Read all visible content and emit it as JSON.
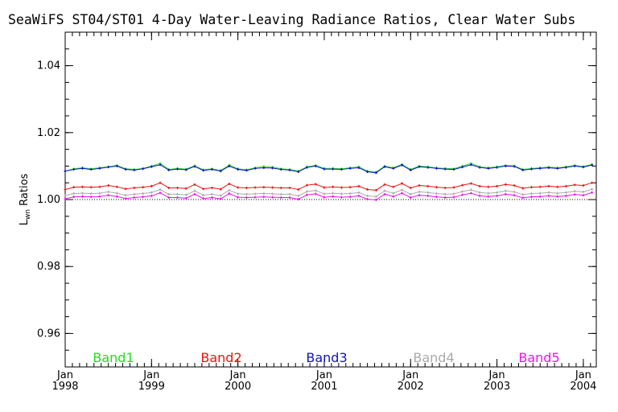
{
  "chart_data": {
    "type": "line",
    "title": "SeaWiFS ST04/ST01 4-Day Water-Leaving Radiance Ratios, Clear Water Subs",
    "ylabel": "Lwn Ratios",
    "ylabel_main": "L",
    "ylabel_sub": "wn",
    "ylabel_rest": " Ratios",
    "xlabel": "",
    "xlim": [
      1998.0,
      2004.15
    ],
    "ylim": [
      0.95,
      1.05
    ],
    "yticks": [
      "0.96",
      "0.98",
      "1.00",
      "1.02",
      "1.04"
    ],
    "ytick_values": [
      0.96,
      0.98,
      1.0,
      1.02,
      1.04
    ],
    "xticks": [
      {
        "month": "Jan",
        "year": "1998",
        "value": 1998
      },
      {
        "month": "Jan",
        "year": "1999",
        "value": 1999
      },
      {
        "month": "Jan",
        "year": "2000",
        "value": 2000
      },
      {
        "month": "Jan",
        "year": "2001",
        "value": 2001
      },
      {
        "month": "Jan",
        "year": "2002",
        "value": 2002
      },
      {
        "month": "Jan",
        "year": "2003",
        "value": 2003
      },
      {
        "month": "Jan",
        "year": "2004",
        "value": 2004
      }
    ],
    "reference_line": 1.0,
    "x": [
      1998.0,
      1998.1,
      1998.2,
      1998.3,
      1998.4,
      1998.5,
      1998.6,
      1998.7,
      1998.8,
      1998.9,
      1999.0,
      1999.1,
      1999.2,
      1999.3,
      1999.4,
      1999.5,
      1999.6,
      1999.7,
      1999.8,
      1999.9,
      2000.0,
      2000.1,
      2000.2,
      2000.3,
      2000.4,
      2000.5,
      2000.6,
      2000.7,
      2000.8,
      2000.9,
      2001.0,
      2001.1,
      2001.2,
      2001.3,
      2001.4,
      2001.5,
      2001.6,
      2001.7,
      2001.8,
      2001.9,
      2002.0,
      2002.1,
      2002.2,
      2002.3,
      2002.4,
      2002.5,
      2002.6,
      2002.7,
      2002.8,
      2002.9,
      2003.0,
      2003.1,
      2003.2,
      2003.3,
      2003.4,
      2003.5,
      2003.6,
      2003.7,
      2003.8,
      2003.9,
      2004.0,
      2004.1
    ],
    "series": [
      {
        "name": "Band1",
        "color": "#22dd22",
        "values": [
          1.0085,
          1.0092,
          1.0095,
          1.0092,
          1.0095,
          1.0098,
          1.0102,
          1.0092,
          1.009,
          1.0093,
          1.01,
          1.0108,
          1.009,
          1.0093,
          1.0091,
          1.0101,
          1.0089,
          1.0092,
          1.0087,
          1.0103,
          1.0092,
          1.0089,
          1.0095,
          1.0099,
          1.0097,
          1.0092,
          1.009,
          1.0085,
          1.0098,
          1.0102,
          1.0093,
          1.0093,
          1.0092,
          1.0095,
          1.0098,
          1.0085,
          1.0082,
          1.01,
          1.0095,
          1.0105,
          1.009,
          1.01,
          1.0098,
          1.0095,
          1.0093,
          1.0092,
          1.01,
          1.0108,
          1.0098,
          1.0095,
          1.0098,
          1.0102,
          1.0101,
          1.009,
          1.0093,
          1.0095,
          1.0097,
          1.0095,
          1.0098,
          1.0102,
          1.0099,
          1.0105
        ]
      },
      {
        "name": "Band2",
        "color": "#ee1111",
        "values": [
          1.003,
          1.0037,
          1.0038,
          1.0037,
          1.0038,
          1.0042,
          1.0038,
          1.0032,
          1.0035,
          1.0037,
          1.004,
          1.005,
          1.0035,
          1.0035,
          1.0033,
          1.0045,
          1.0032,
          1.0035,
          1.0031,
          1.0047,
          1.0036,
          1.0035,
          1.0036,
          1.0037,
          1.0036,
          1.0035,
          1.0035,
          1.003,
          1.0043,
          1.0046,
          1.0036,
          1.0038,
          1.0036,
          1.0037,
          1.004,
          1.003,
          1.0028,
          1.0045,
          1.0038,
          1.0048,
          1.0035,
          1.0042,
          1.004,
          1.0037,
          1.0035,
          1.0036,
          1.0043,
          1.0048,
          1.004,
          1.0038,
          1.004,
          1.0045,
          1.0042,
          1.0034,
          1.0037,
          1.0038,
          1.004,
          1.0038,
          1.004,
          1.0044,
          1.0042,
          1.005
        ]
      },
      {
        "name": "Band3",
        "color": "#1111cc",
        "values": [
          1.0085,
          1.009,
          1.0093,
          1.009,
          1.0093,
          1.0097,
          1.01,
          1.009,
          1.0088,
          1.0092,
          1.0098,
          1.0104,
          1.0088,
          1.0091,
          1.0089,
          1.0099,
          1.0087,
          1.009,
          1.0085,
          1.01,
          1.009,
          1.0087,
          1.0093,
          1.0095,
          1.0094,
          1.009,
          1.0088,
          1.0083,
          1.0096,
          1.01,
          1.0091,
          1.0091,
          1.009,
          1.0093,
          1.0095,
          1.0083,
          1.008,
          1.0098,
          1.0093,
          1.0103,
          1.0088,
          1.0098,
          1.0096,
          1.0093,
          1.0091,
          1.009,
          1.0097,
          1.0104,
          1.0096,
          1.0093,
          1.0096,
          1.01,
          1.0099,
          1.0088,
          1.0091,
          1.0093,
          1.0095,
          1.0093,
          1.0096,
          1.01,
          1.0097,
          1.0103
        ]
      },
      {
        "name": "Band4",
        "color": "#aaaaaa",
        "values": [
          1.0012,
          1.0018,
          1.0019,
          1.0018,
          1.0019,
          1.0023,
          1.0019,
          1.0013,
          1.0016,
          1.0018,
          1.0021,
          1.003,
          1.0016,
          1.0016,
          1.0014,
          1.0026,
          1.0013,
          1.0016,
          1.0012,
          1.0028,
          1.0017,
          1.0016,
          1.0017,
          1.0018,
          1.0017,
          1.0016,
          1.0016,
          1.0011,
          1.0024,
          1.0027,
          1.0017,
          1.0019,
          1.0017,
          1.0018,
          1.0021,
          1.0011,
          1.0009,
          1.0026,
          1.0019,
          1.0029,
          1.0016,
          1.0023,
          1.0021,
          1.0018,
          1.0016,
          1.0017,
          1.0024,
          1.0029,
          1.0021,
          1.0019,
          1.0021,
          1.0026,
          1.0023,
          1.0015,
          1.0018,
          1.0019,
          1.0021,
          1.0019,
          1.0021,
          1.0025,
          1.0023,
          1.0031
        ]
      },
      {
        "name": "Band5",
        "color": "#ee11ee",
        "values": [
          1.0002,
          1.0008,
          1.0009,
          1.0008,
          1.0009,
          1.0013,
          1.0009,
          1.0003,
          1.0006,
          1.0008,
          1.0011,
          1.002,
          1.0006,
          1.0006,
          1.0004,
          1.0016,
          1.0003,
          1.0006,
          1.0002,
          1.0018,
          1.0007,
          1.0006,
          1.0007,
          1.0008,
          1.0007,
          1.0006,
          1.0006,
          1.0001,
          1.0014,
          1.0017,
          1.0007,
          1.0009,
          1.0007,
          1.0008,
          1.0011,
          1.0001,
          0.9999,
          1.0016,
          1.0009,
          1.0019,
          1.0006,
          1.0013,
          1.0011,
          1.0008,
          1.0006,
          1.0007,
          1.0014,
          1.0019,
          1.0011,
          1.0009,
          1.0011,
          1.0016,
          1.0013,
          1.0005,
          1.0008,
          1.0009,
          1.0011,
          1.0009,
          1.0011,
          1.0015,
          1.0013,
          1.0021
        ]
      }
    ]
  }
}
